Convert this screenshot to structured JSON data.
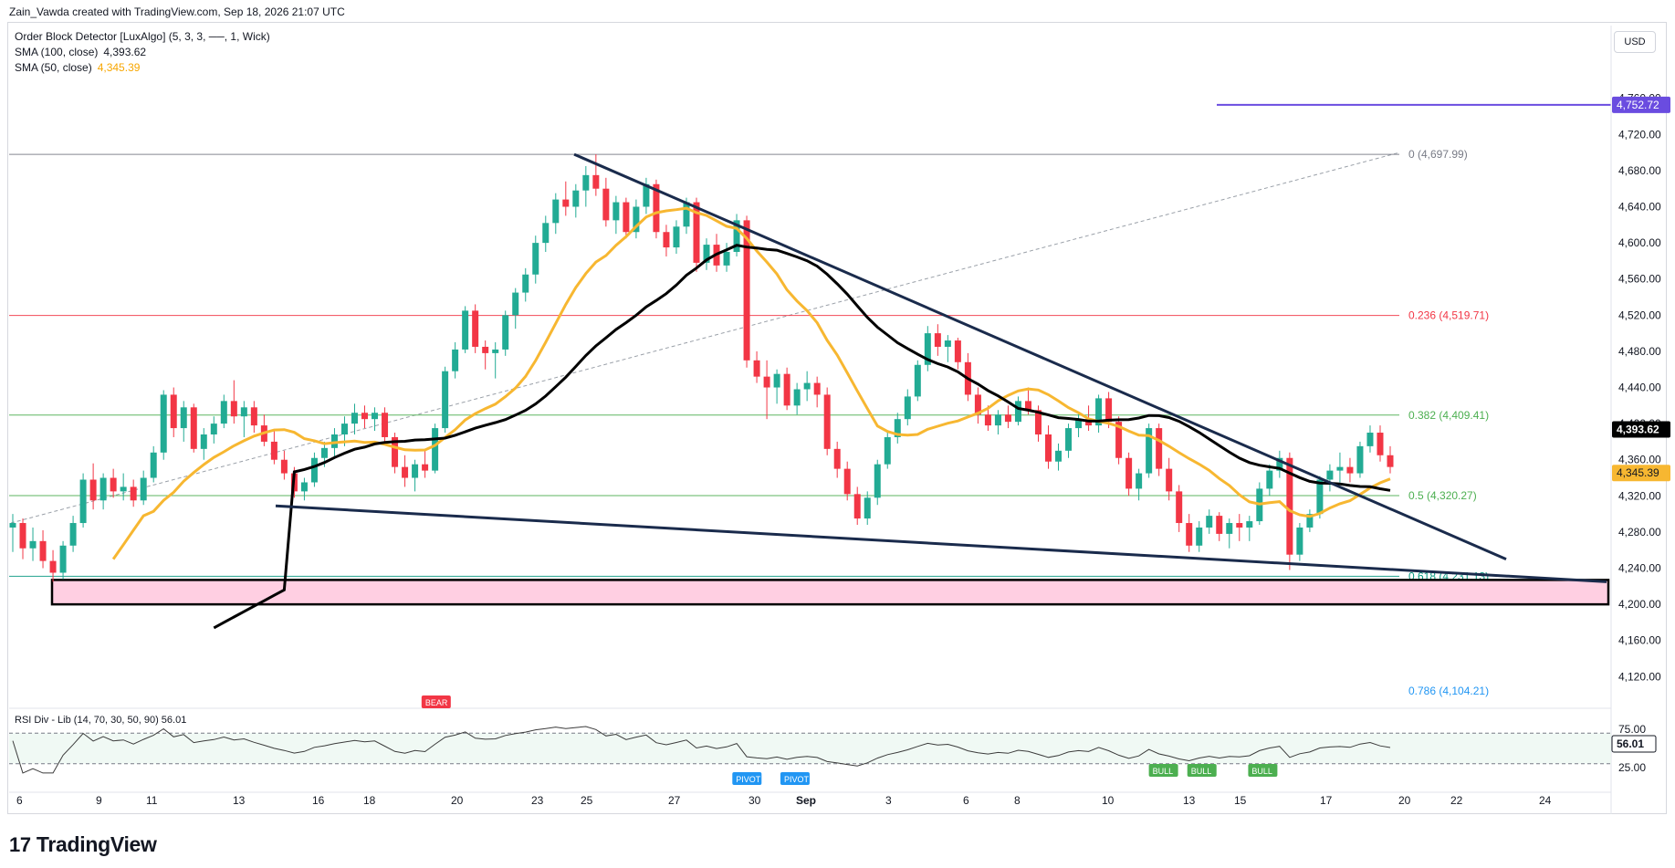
{
  "header": {
    "created_by": "Zain_Vawda created with TradingView.com, Sep 18, 2026 21:07 UTC"
  },
  "legend": {
    "line1": "Order Block Detector [LuxAlgo] (5, 3, 3, ──, 1, Wick)",
    "line2_label": "SMA (100, close)",
    "line2_value": "4,393.62",
    "line3_label": "SMA (50, close)",
    "line3_value": "4,345.39"
  },
  "currency_button": "USD",
  "brand": "TradingView",
  "colors": {
    "up": "#22ab94",
    "down": "#f23645",
    "sma50": "#f7b731",
    "sma100": "#000000",
    "trend": "#1a2b4c",
    "order_block": "#ffcfe2",
    "resistance": "#6a4ce0"
  },
  "chart_data": {
    "type": "candlestick",
    "symbol_price_label": "4,393.62",
    "sma50_label": "4,345.39",
    "resistance_label": "4,752.72",
    "ylim": [
      4086,
      4790
    ],
    "y_ticks": [
      "4,760.00",
      "4,720.00",
      "4,680.00",
      "4,640.00",
      "4,600.00",
      "4,560.00",
      "4,520.00",
      "4,480.00",
      "4,440.00",
      "4,400.00",
      "4,360.00",
      "4,320.00",
      "4,280.00",
      "4,240.00",
      "4,200.00",
      "4,160.00",
      "4,120.00"
    ],
    "x_ticks": [
      "6",
      "9",
      "11",
      "13",
      "16",
      "18",
      "20",
      "23",
      "25",
      "27",
      "30",
      "Sep",
      "3",
      "6",
      "8",
      "10",
      "13",
      "15",
      "17",
      "20",
      "22",
      "24"
    ],
    "fibonacci": [
      {
        "label": "0 (4,697.99)",
        "value": 4697.99,
        "color": "#787b86"
      },
      {
        "label": "0.236 (4,519.71)",
        "value": 4519.71,
        "color": "#f23645"
      },
      {
        "label": "0.382 (4,409.41)",
        "value": 4409.41,
        "color": "#4caf50"
      },
      {
        "label": "0.5 (4,320.27)",
        "value": 4320.27,
        "color": "#4caf50"
      },
      {
        "label": "0.618 (4,231.13)",
        "value": 4231.13,
        "color": "#089981"
      },
      {
        "label": "0.786 (4,104.21)",
        "value": 4104.21,
        "color": "#2196f3"
      }
    ],
    "order_block": {
      "top": 4227,
      "bottom": 4200
    },
    "resistance": 4752.72,
    "rsi": {
      "label": "RSI Div - Lib (14, 70, 30, 50, 90)",
      "value": "56.01",
      "ticks": [
        "75.00",
        "50.00",
        "25.00"
      ],
      "signals": [
        {
          "label": "BEAR",
          "x": 0.266
        },
        {
          "label": "PIVOT",
          "x": 0.46
        },
        {
          "label": "PIVOT",
          "x": 0.49
        },
        {
          "label": "BULL",
          "x": 0.72
        },
        {
          "label": "BULL",
          "x": 0.744
        },
        {
          "label": "BULL",
          "x": 0.782
        }
      ]
    },
    "candles": [
      [
        4285,
        4300,
        4258,
        4290
      ],
      [
        4290,
        4295,
        4250,
        4262
      ],
      [
        4262,
        4285,
        4248,
        4270
      ],
      [
        4270,
        4282,
        4240,
        4248
      ],
      [
        4248,
        4260,
        4225,
        4235
      ],
      [
        4235,
        4270,
        4228,
        4265
      ],
      [
        4265,
        4298,
        4258,
        4290
      ],
      [
        4290,
        4345,
        4285,
        4338
      ],
      [
        4338,
        4356,
        4305,
        4315
      ],
      [
        4315,
        4345,
        4305,
        4340
      ],
      [
        4340,
        4350,
        4318,
        4325
      ],
      [
        4325,
        4345,
        4315,
        4330
      ],
      [
        4330,
        4338,
        4308,
        4315
      ],
      [
        4315,
        4348,
        4310,
        4340
      ],
      [
        4340,
        4375,
        4335,
        4368
      ],
      [
        4368,
        4437,
        4360,
        4432
      ],
      [
        4432,
        4440,
        4385,
        4395
      ],
      [
        4395,
        4425,
        4380,
        4418
      ],
      [
        4418,
        4422,
        4368,
        4372
      ],
      [
        4372,
        4395,
        4360,
        4388
      ],
      [
        4388,
        4408,
        4378,
        4400
      ],
      [
        4400,
        4432,
        4395,
        4425
      ],
      [
        4425,
        4448,
        4400,
        4408
      ],
      [
        4408,
        4425,
        4385,
        4418
      ],
      [
        4418,
        4425,
        4390,
        4398
      ],
      [
        4398,
        4410,
        4375,
        4380
      ],
      [
        4380,
        4392,
        4355,
        4360
      ],
      [
        4360,
        4370,
        4338,
        4345
      ],
      [
        4345,
        4352,
        4318,
        4325
      ],
      [
        4325,
        4340,
        4315,
        4335
      ],
      [
        4335,
        4368,
        4330,
        4362
      ],
      [
        4362,
        4380,
        4352,
        4373
      ],
      [
        4373,
        4395,
        4362,
        4388
      ],
      [
        4388,
        4408,
        4375,
        4400
      ],
      [
        4400,
        4422,
        4388,
        4412
      ],
      [
        4412,
        4420,
        4395,
        4405
      ],
      [
        4405,
        4418,
        4392,
        4412
      ],
      [
        4412,
        4418,
        4380,
        4385
      ],
      [
        4385,
        4390,
        4345,
        4352
      ],
      [
        4352,
        4365,
        4330,
        4340
      ],
      [
        4340,
        4360,
        4325,
        4355
      ],
      [
        4355,
        4372,
        4340,
        4348
      ],
      [
        4348,
        4400,
        4345,
        4395
      ],
      [
        4395,
        4463,
        4390,
        4458
      ],
      [
        4458,
        4490,
        4450,
        4482
      ],
      [
        4482,
        4530,
        4478,
        4525
      ],
      [
        4525,
        4532,
        4478,
        4485
      ],
      [
        4485,
        4492,
        4460,
        4478
      ],
      [
        4478,
        4490,
        4450,
        4482
      ],
      [
        4482,
        4525,
        4475,
        4520
      ],
      [
        4520,
        4550,
        4505,
        4545
      ],
      [
        4545,
        4572,
        4535,
        4565
      ],
      [
        4565,
        4608,
        4555,
        4600
      ],
      [
        4600,
        4630,
        4590,
        4622
      ],
      [
        4622,
        4655,
        4610,
        4648
      ],
      [
        4648,
        4668,
        4630,
        4640
      ],
      [
        4640,
        4665,
        4628,
        4658
      ],
      [
        4658,
        4685,
        4640,
        4675
      ],
      [
        4675,
        4698,
        4652,
        4660
      ],
      [
        4660,
        4672,
        4618,
        4625
      ],
      [
        4625,
        4652,
        4610,
        4645
      ],
      [
        4645,
        4650,
        4605,
        4612
      ],
      [
        4612,
        4648,
        4605,
        4640
      ],
      [
        4640,
        4672,
        4632,
        4665
      ],
      [
        4665,
        4670,
        4605,
        4612
      ],
      [
        4612,
        4620,
        4585,
        4595
      ],
      [
        4595,
        4625,
        4588,
        4618
      ],
      [
        4618,
        4650,
        4610,
        4645
      ],
      [
        4645,
        4650,
        4568,
        4578
      ],
      [
        4578,
        4605,
        4570,
        4598
      ],
      [
        4598,
        4610,
        4568,
        4575
      ],
      [
        4575,
        4600,
        4568,
        4590
      ],
      [
        4590,
        4632,
        4585,
        4625
      ],
      [
        4625,
        4630,
        4462,
        4470
      ],
      [
        4470,
        4480,
        4445,
        4452
      ],
      [
        4452,
        4470,
        4405,
        4440
      ],
      [
        4440,
        4460,
        4422,
        4455
      ],
      [
        4455,
        4462,
        4415,
        4420
      ],
      [
        4420,
        4445,
        4410,
        4438
      ],
      [
        4438,
        4458,
        4425,
        4445
      ],
      [
        4445,
        4452,
        4418,
        4432
      ],
      [
        4432,
        4440,
        4365,
        4372
      ],
      [
        4372,
        4380,
        4340,
        4350
      ],
      [
        4350,
        4358,
        4315,
        4322
      ],
      [
        4322,
        4330,
        4288,
        4295
      ],
      [
        4295,
        4325,
        4288,
        4318
      ],
      [
        4318,
        4360,
        4310,
        4355
      ],
      [
        4355,
        4392,
        4350,
        4385
      ],
      [
        4385,
        4412,
        4378,
        4405
      ],
      [
        4405,
        4438,
        4398,
        4430
      ],
      [
        4430,
        4470,
        4425,
        4465
      ],
      [
        4465,
        4508,
        4458,
        4500
      ],
      [
        4500,
        4510,
        4475,
        4485
      ],
      [
        4485,
        4498,
        4468,
        4492
      ],
      [
        4492,
        4495,
        4460,
        4468
      ],
      [
        4468,
        4478,
        4425,
        4432
      ],
      [
        4432,
        4440,
        4400,
        4410
      ],
      [
        4410,
        4420,
        4392,
        4398
      ],
      [
        4398,
        4415,
        4388,
        4410
      ],
      [
        4410,
        4420,
        4395,
        4402
      ],
      [
        4402,
        4430,
        4398,
        4425
      ],
      [
        4425,
        4440,
        4410,
        4415
      ],
      [
        4415,
        4420,
        4380,
        4388
      ],
      [
        4388,
        4398,
        4350,
        4358
      ],
      [
        4358,
        4378,
        4348,
        4370
      ],
      [
        4370,
        4400,
        4362,
        4395
      ],
      [
        4395,
        4412,
        4385,
        4405
      ],
      [
        4405,
        4420,
        4392,
        4398
      ],
      [
        4398,
        4432,
        4390,
        4428
      ],
      [
        4428,
        4435,
        4395,
        4402
      ],
      [
        4402,
        4408,
        4355,
        4362
      ],
      [
        4362,
        4368,
        4320,
        4328
      ],
      [
        4328,
        4350,
        4315,
        4345
      ],
      [
        4345,
        4400,
        4340,
        4395
      ],
      [
        4395,
        4400,
        4342,
        4350
      ],
      [
        4350,
        4362,
        4315,
        4325
      ],
      [
        4325,
        4332,
        4280,
        4290
      ],
      [
        4290,
        4300,
        4258,
        4265
      ],
      [
        4265,
        4292,
        4258,
        4285
      ],
      [
        4285,
        4305,
        4278,
        4298
      ],
      [
        4298,
        4302,
        4270,
        4278
      ],
      [
        4278,
        4295,
        4262,
        4290
      ],
      [
        4290,
        4300,
        4270,
        4285
      ],
      [
        4285,
        4298,
        4270,
        4292
      ],
      [
        4292,
        4335,
        4288,
        4328
      ],
      [
        4328,
        4355,
        4320,
        4348
      ],
      [
        4348,
        4370,
        4340,
        4362
      ],
      [
        4362,
        4368,
        4238,
        4255
      ],
      [
        4255,
        4290,
        4248,
        4285
      ],
      [
        4285,
        4305,
        4280,
        4300
      ],
      [
        4300,
        4342,
        4295,
        4338
      ],
      [
        4338,
        4355,
        4325,
        4348
      ],
      [
        4348,
        4368,
        4335,
        4352
      ],
      [
        4352,
        4362,
        4335,
        4345
      ],
      [
        4345,
        4380,
        4340,
        4375
      ],
      [
        4375,
        4398,
        4368,
        4390
      ],
      [
        4390,
        4398,
        4358,
        4365
      ],
      [
        4365,
        4375,
        4345,
        4352
      ]
    ]
  }
}
